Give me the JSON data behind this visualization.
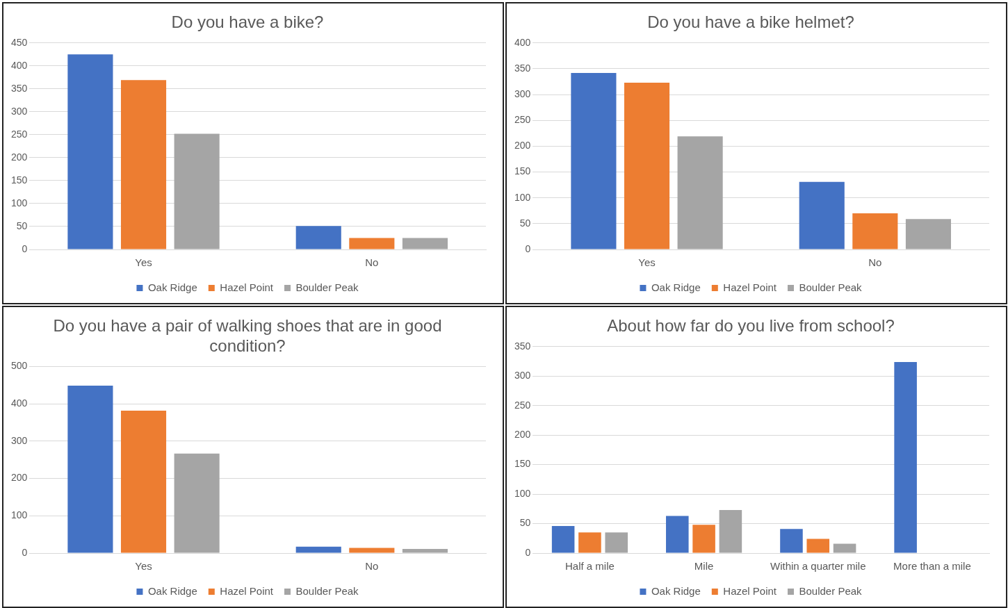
{
  "chart_data": [
    {
      "type": "bar",
      "title": "Do you have a bike?",
      "categories": [
        "Yes",
        "No"
      ],
      "series": [
        {
          "name": "Oak Ridge",
          "color": "#4472c4",
          "values": [
            425,
            51
          ]
        },
        {
          "name": "Hazel Point",
          "color": "#ed7d31",
          "values": [
            369,
            25
          ]
        },
        {
          "name": "Boulder Peak",
          "color": "#a5a5a5",
          "values": [
            252,
            25
          ]
        }
      ],
      "ylim": [
        0,
        450
      ],
      "yticks": [
        0,
        50,
        100,
        150,
        200,
        250,
        300,
        350,
        400,
        450
      ],
      "grid": "y",
      "legend": "bottom"
    },
    {
      "type": "bar",
      "title": "Do you have a bike helmet?",
      "categories": [
        "Yes",
        "No"
      ],
      "series": [
        {
          "name": "Oak Ridge",
          "color": "#4472c4",
          "values": [
            342,
            131
          ]
        },
        {
          "name": "Hazel Point",
          "color": "#ed7d31",
          "values": [
            323,
            70
          ]
        },
        {
          "name": "Boulder Peak",
          "color": "#a5a5a5",
          "values": [
            219,
            59
          ]
        }
      ],
      "ylim": [
        0,
        400
      ],
      "yticks": [
        0,
        50,
        100,
        150,
        200,
        250,
        300,
        350,
        400
      ],
      "grid": "y",
      "legend": "bottom"
    },
    {
      "type": "bar",
      "title": "Do you have a pair of walking shoes that are in good condition?",
      "categories": [
        "Yes",
        "No"
      ],
      "series": [
        {
          "name": "Oak Ridge",
          "color": "#4472c4",
          "values": [
            449,
            17
          ]
        },
        {
          "name": "Hazel Point",
          "color": "#ed7d31",
          "values": [
            382,
            14
          ]
        },
        {
          "name": "Boulder Peak",
          "color": "#a5a5a5",
          "values": [
            267,
            11
          ]
        }
      ],
      "ylim": [
        0,
        500
      ],
      "yticks": [
        0,
        100,
        200,
        300,
        400,
        500
      ],
      "grid": "y",
      "legend": "bottom"
    },
    {
      "type": "bar",
      "title": "About how far do you live from school?",
      "categories": [
        "Half a mile",
        "Mile",
        "Within a quarter mile",
        "More than a mile"
      ],
      "series": [
        {
          "name": "Oak Ridge",
          "color": "#4472c4",
          "values": [
            46,
            63,
            41,
            324
          ]
        },
        {
          "name": "Hazel Point",
          "color": "#ed7d31",
          "values": [
            35,
            48,
            24,
            0
          ]
        },
        {
          "name": "Boulder Peak",
          "color": "#a5a5a5",
          "values": [
            35,
            73,
            16,
            0
          ]
        }
      ],
      "ylim": [
        0,
        350
      ],
      "yticks": [
        0,
        50,
        100,
        150,
        200,
        250,
        300,
        350
      ],
      "grid": "y",
      "legend": "bottom"
    }
  ]
}
